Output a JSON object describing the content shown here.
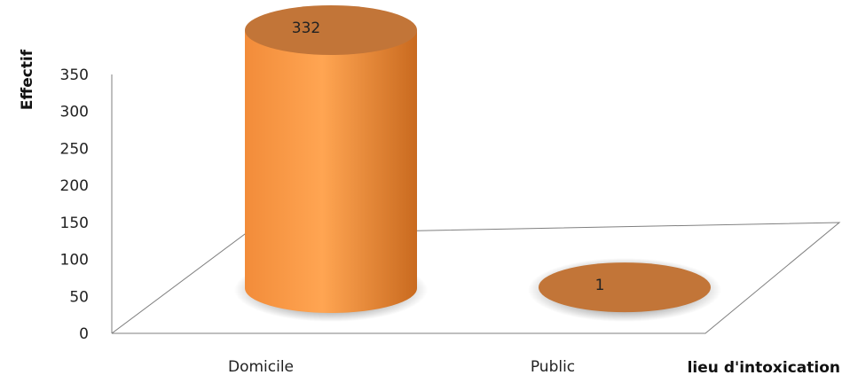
{
  "chart_data": {
    "type": "bar",
    "bar_shape": "cylinder-3d",
    "categories": [
      "Domicile",
      "Public"
    ],
    "values": [
      332,
      1
    ],
    "data_labels": [
      "332",
      "1"
    ],
    "title": "",
    "xlabel": "lieu d'intoxication",
    "ylabel": "Effectif",
    "ylim": [
      0,
      350
    ],
    "yticks": [
      "0",
      "50",
      "100",
      "150",
      "200",
      "250",
      "300",
      "350"
    ],
    "grid": false,
    "legend": "none",
    "colors": {
      "bar_light": "#ffa552",
      "bar_mid": "#f28c3a",
      "bar_dark": "#c96a1f",
      "top_face": "#c27538",
      "axis": "#7f7f7f"
    }
  }
}
